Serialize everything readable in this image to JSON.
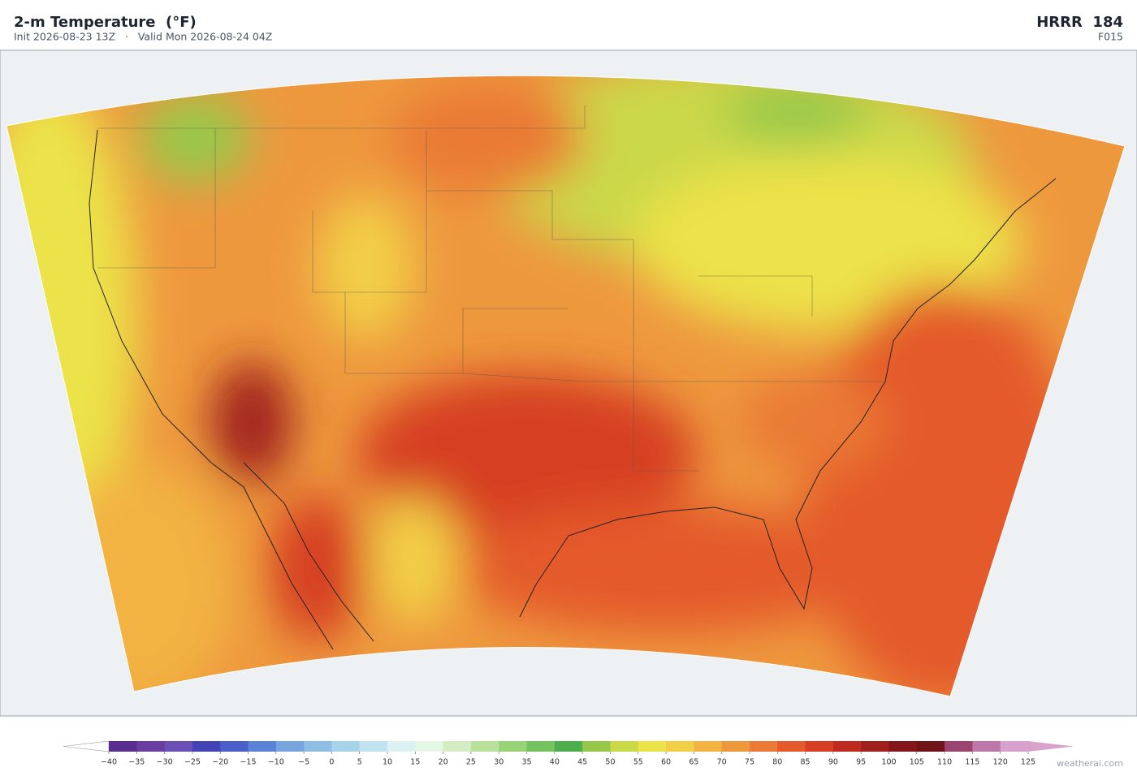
{
  "header": {
    "title": "2-m Temperature  (°F)",
    "subtitle": "Init 2026-08-23 13Z   ·   Valid Mon 2026-08-24 04Z",
    "model": "HRRR  184",
    "forecast_hour": "F015"
  },
  "colorbar": {
    "ticks": [
      {
        "value": -40,
        "label": "−40"
      },
      {
        "value": -35,
        "label": "−35"
      },
      {
        "value": -30,
        "label": "−30"
      },
      {
        "value": -25,
        "label": "−25"
      },
      {
        "value": -20,
        "label": "−20"
      },
      {
        "value": -15,
        "label": "−15"
      },
      {
        "value": -10,
        "label": "−10"
      },
      {
        "value": -5,
        "label": "−5"
      },
      0,
      5,
      10,
      15,
      20,
      25,
      30,
      35,
      40,
      45,
      50,
      55,
      60,
      65,
      70,
      75,
      80,
      85,
      90,
      95,
      100,
      105,
      110,
      115,
      120,
      125
    ],
    "colors": [
      "#5a2d91",
      "#6a3ea1",
      "#6b4fb5",
      "#4343b8",
      "#4a5fc8",
      "#5b84d6",
      "#78a5de",
      "#8fbde3",
      "#a8d4ea",
      "#c2e4f0",
      "#dbf1f3",
      "#e5f6e5",
      "#d3ecc1",
      "#b8e19a",
      "#98d477",
      "#74c35f",
      "#4cae4c",
      "#98c84a",
      "#cbd848",
      "#ece24a",
      "#f2cf46",
      "#f2b342",
      "#ee983e",
      "#ea7a36",
      "#e45a2a",
      "#d63f22",
      "#bf2b20",
      "#a0201e",
      "#84171a",
      "#701419",
      "#9c4470",
      "#bd78a8",
      "#d9a2cc"
    ],
    "under_color": "#ffffff",
    "over_color": "#d9a2cc"
  },
  "watermark": "weatherai.com"
}
